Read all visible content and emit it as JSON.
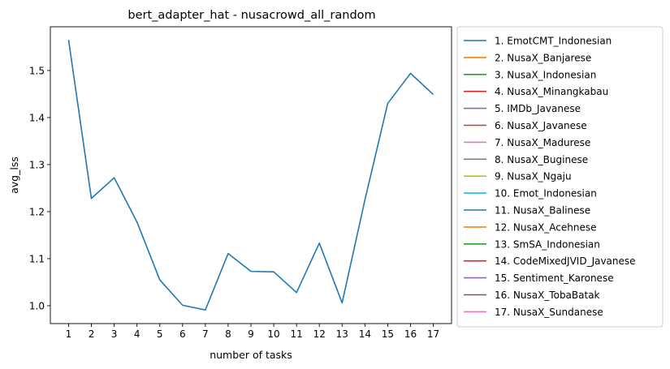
{
  "chart_data": {
    "type": "line",
    "title": "bert_adapter_hat - nusacrowd_all_random",
    "xlabel": "number of tasks",
    "ylabel": "avg_lss",
    "x": [
      1,
      2,
      3,
      4,
      5,
      6,
      7,
      8,
      9,
      10,
      11,
      12,
      13,
      14,
      15,
      16,
      17
    ],
    "xlim": [
      0.2,
      17.8
    ],
    "ylim": [
      0.962,
      1.593
    ],
    "yticks": [
      1.0,
      1.1,
      1.2,
      1.3,
      1.4,
      1.5
    ],
    "ytick_labels": [
      "1.0",
      "1.1",
      "1.2",
      "1.3",
      "1.4",
      "1.5"
    ],
    "grid": false,
    "legend_position": "outside-right",
    "series": [
      {
        "name": "1. EmotCMT_Indonesian",
        "color": "#1f77b4",
        "values": [
          1.565,
          1.228,
          1.272,
          1.178,
          1.055,
          1.001,
          0.991,
          1.111,
          1.073,
          1.072,
          1.028,
          1.133,
          1.006,
          1.225,
          1.43,
          1.494,
          1.449
        ]
      }
    ],
    "legend": [
      {
        "label": "1. EmotCMT_Indonesian",
        "color": "#1f77b4"
      },
      {
        "label": "2. NusaX_Banjarese",
        "color": "#ff7f0e"
      },
      {
        "label": "3. NusaX_Indonesian",
        "color": "#2ca02c"
      },
      {
        "label": "4. NusaX_Minangkabau",
        "color": "#d62728"
      },
      {
        "label": "5. IMDb_Javanese",
        "color": "#9467bd"
      },
      {
        "label": "6. NusaX_Javanese",
        "color": "#8c564b"
      },
      {
        "label": "7. NusaX_Madurese",
        "color": "#e377c2"
      },
      {
        "label": "8. NusaX_Buginese",
        "color": "#7f7f7f"
      },
      {
        "label": "9. NusaX_Ngaju",
        "color": "#bcbd22"
      },
      {
        "label": "10. Emot_Indonesian",
        "color": "#17becf"
      },
      {
        "label": "11. NusaX_Balinese",
        "color": "#1f77b4"
      },
      {
        "label": "12. NusaX_Acehnese",
        "color": "#ff7f0e"
      },
      {
        "label": "13. SmSA_Indonesian",
        "color": "#2ca02c"
      },
      {
        "label": "14. CodeMixedJVID_Javanese",
        "color": "#d62728"
      },
      {
        "label": "15. Sentiment_Karonese",
        "color": "#9467bd"
      },
      {
        "label": "16. NusaX_TobaBatak",
        "color": "#8c564b"
      },
      {
        "label": "17. NusaX_Sundanese",
        "color": "#e377c2"
      }
    ]
  }
}
